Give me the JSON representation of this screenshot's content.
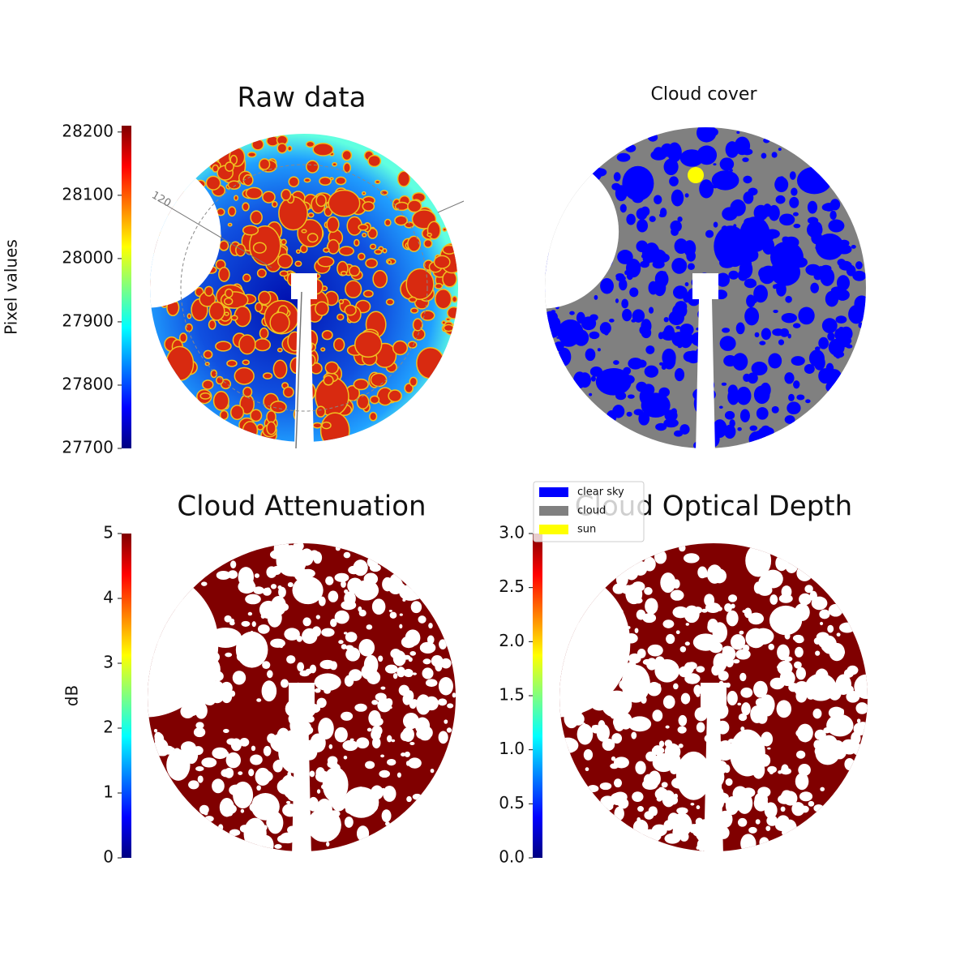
{
  "chart_data": [
    {
      "type": "image",
      "title": "Raw data",
      "ylabel": "Pixel values",
      "ylim": [
        27700,
        28210
      ],
      "yticks": [
        27700,
        27800,
        27900,
        28000,
        28100,
        28200
      ],
      "colormap": "jet",
      "annotation": "120"
    },
    {
      "type": "image",
      "title": "Cloud cover",
      "legend": [
        {
          "name": "clear sky",
          "color": "#0000ff"
        },
        {
          "name": "cloud",
          "color": "#808080"
        },
        {
          "name": "sun",
          "color": "#ffff00"
        }
      ]
    },
    {
      "type": "image",
      "title": "Cloud Attenuation",
      "ylabel": "dB",
      "ylim": [
        0,
        5
      ],
      "yticks": [
        0,
        1,
        2,
        3,
        4,
        5
      ],
      "colormap": "jet",
      "color": "#800000"
    },
    {
      "type": "image",
      "title": "Cloud Optical Depth",
      "ylim": [
        0,
        3
      ],
      "yticks": [
        {
          "value": 0,
          "label": "0.0"
        },
        0.5,
        {
          "value": 1,
          "label": "1.0"
        },
        1.5,
        {
          "value": 2,
          "label": "2.0"
        },
        2.5,
        {
          "value": 3,
          "label": "3.0"
        }
      ],
      "colormap": "jet",
      "color": "#800000"
    }
  ]
}
